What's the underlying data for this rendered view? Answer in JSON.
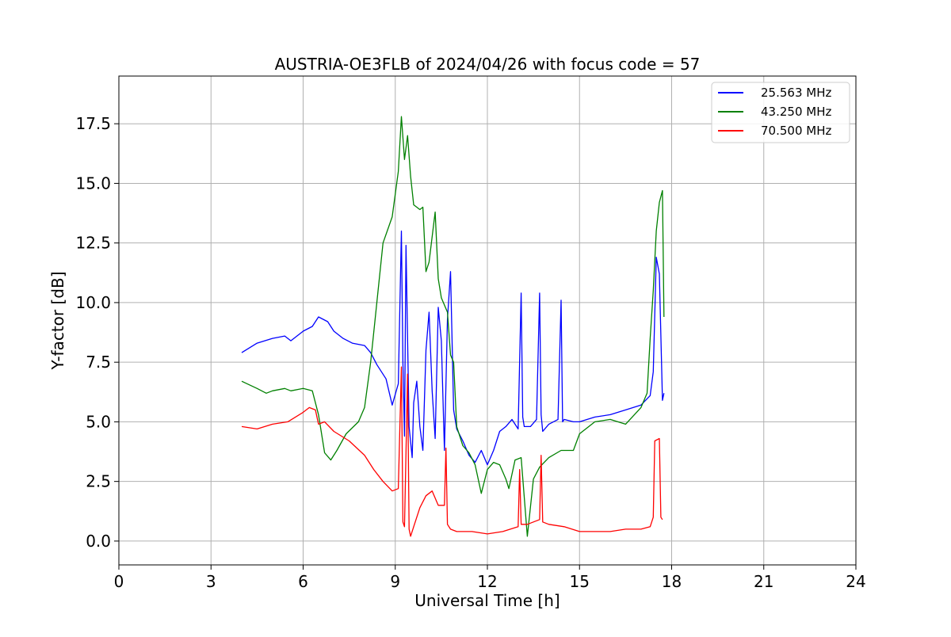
{
  "chart_data": {
    "type": "line",
    "title": "AUSTRIA-OE3FLB of 2024/04/26 with focus code = 57",
    "xlabel": "Universal Time [h]",
    "ylabel": "Y-factor [dB]",
    "xlim": [
      0,
      24
    ],
    "ylim": [
      -1.0,
      19.5
    ],
    "xticks": [
      0,
      3,
      6,
      9,
      12,
      15,
      18,
      21,
      24
    ],
    "xtick_labels": [
      "0",
      "3",
      "6",
      "9",
      "12",
      "15",
      "18",
      "21",
      "24"
    ],
    "yticks": [
      0.0,
      2.5,
      5.0,
      7.5,
      10.0,
      12.5,
      15.0,
      17.5
    ],
    "ytick_labels": [
      "0.0",
      "2.5",
      "5.0",
      "7.5",
      "10.0",
      "12.5",
      "15.0",
      "17.5"
    ],
    "grid": true,
    "legend_position": "top-right",
    "series": [
      {
        "name": "25.563 MHz",
        "color": "#0000ff",
        "x": [
          4.0,
          4.5,
          5.0,
          5.4,
          5.6,
          6.0,
          6.3,
          6.5,
          6.8,
          7.0,
          7.3,
          7.6,
          8.0,
          8.2,
          8.4,
          8.7,
          8.9,
          9.1,
          9.2,
          9.25,
          9.3,
          9.35,
          9.45,
          9.55,
          9.6,
          9.7,
          9.8,
          9.9,
          10.0,
          10.1,
          10.2,
          10.3,
          10.4,
          10.5,
          10.6,
          10.7,
          10.8,
          10.9,
          11.0,
          11.2,
          11.4,
          11.6,
          11.8,
          12.0,
          12.2,
          12.4,
          12.6,
          12.8,
          13.0,
          13.1,
          13.15,
          13.2,
          13.4,
          13.6,
          13.7,
          13.75,
          13.8,
          14.0,
          14.3,
          14.4,
          14.45,
          14.5,
          14.8,
          15.0,
          15.5,
          16.0,
          16.5,
          17.0,
          17.3,
          17.4,
          17.5,
          17.6,
          17.7,
          17.75
        ],
        "values": [
          7.9,
          8.3,
          8.5,
          8.6,
          8.4,
          8.8,
          9.0,
          9.4,
          9.2,
          8.8,
          8.5,
          8.3,
          8.2,
          7.9,
          7.4,
          6.8,
          5.7,
          6.6,
          13.0,
          7.5,
          4.4,
          12.4,
          4.8,
          3.5,
          5.8,
          6.7,
          4.8,
          3.8,
          8.0,
          9.6,
          6.3,
          4.3,
          9.8,
          8.4,
          3.8,
          9.3,
          11.3,
          5.5,
          4.7,
          4.2,
          3.6,
          3.3,
          3.8,
          3.2,
          3.8,
          4.6,
          4.8,
          5.1,
          4.7,
          10.4,
          5.2,
          4.8,
          4.8,
          5.1,
          10.4,
          5.3,
          4.6,
          4.9,
          5.1,
          10.1,
          5.0,
          5.1,
          5.0,
          5.0,
          5.2,
          5.3,
          5.5,
          5.7,
          6.1,
          7.1,
          11.9,
          11.2,
          5.9,
          6.2
        ]
      },
      {
        "name": "43.250 MHz",
        "color": "#008000",
        "x": [
          4.0,
          4.5,
          4.8,
          5.0,
          5.4,
          5.6,
          6.0,
          6.3,
          6.5,
          6.7,
          6.9,
          7.1,
          7.4,
          7.8,
          8.0,
          8.2,
          8.4,
          8.6,
          8.9,
          9.1,
          9.2,
          9.3,
          9.4,
          9.5,
          9.6,
          9.8,
          9.9,
          10.0,
          10.1,
          10.3,
          10.4,
          10.5,
          10.7,
          10.8,
          10.9,
          11.0,
          11.2,
          11.4,
          11.6,
          11.8,
          12.0,
          12.2,
          12.4,
          12.6,
          12.7,
          12.9,
          13.1,
          13.3,
          13.5,
          13.7,
          14.0,
          14.4,
          14.8,
          15.0,
          15.5,
          16.0,
          16.5,
          17.0,
          17.2,
          17.3,
          17.4,
          17.5,
          17.6,
          17.7,
          17.75
        ],
        "values": [
          6.7,
          6.4,
          6.2,
          6.3,
          6.4,
          6.3,
          6.4,
          6.3,
          5.3,
          3.7,
          3.4,
          3.8,
          4.5,
          5.0,
          5.6,
          7.5,
          10.0,
          12.5,
          13.6,
          15.5,
          17.8,
          16.0,
          17.0,
          15.3,
          14.1,
          13.9,
          14.0,
          11.3,
          11.7,
          13.8,
          11.0,
          10.2,
          9.6,
          7.8,
          7.5,
          4.8,
          4.0,
          3.7,
          3.2,
          2.0,
          3.0,
          3.3,
          3.2,
          2.6,
          2.2,
          3.4,
          3.5,
          0.2,
          2.6,
          3.1,
          3.5,
          3.8,
          3.8,
          4.5,
          5.0,
          5.1,
          4.9,
          5.6,
          6.2,
          8.5,
          10.5,
          13.0,
          14.2,
          14.7,
          9.4
        ]
      },
      {
        "name": "70.500 MHz",
        "color": "#ff0000",
        "x": [
          4.0,
          4.5,
          5.0,
          5.5,
          6.0,
          6.2,
          6.4,
          6.5,
          6.7,
          7.0,
          7.5,
          8.0,
          8.3,
          8.6,
          8.9,
          9.1,
          9.2,
          9.25,
          9.3,
          9.4,
          9.45,
          9.5,
          9.6,
          9.8,
          10.0,
          10.2,
          10.4,
          10.6,
          10.65,
          10.7,
          10.8,
          11.0,
          11.5,
          12.0,
          12.5,
          13.0,
          13.05,
          13.1,
          13.3,
          13.5,
          13.7,
          13.75,
          13.8,
          14.0,
          14.5,
          15.0,
          15.5,
          16.0,
          16.5,
          17.0,
          17.3,
          17.4,
          17.45,
          17.6,
          17.65,
          17.7
        ],
        "values": [
          4.8,
          4.7,
          4.9,
          5.0,
          5.4,
          5.6,
          5.5,
          4.9,
          5.0,
          4.6,
          4.2,
          3.6,
          3.0,
          2.5,
          2.1,
          2.2,
          7.3,
          0.8,
          0.6,
          7.0,
          0.5,
          0.2,
          0.6,
          1.4,
          1.9,
          2.1,
          1.5,
          1.5,
          3.9,
          0.7,
          0.5,
          0.4,
          0.4,
          0.3,
          0.4,
          0.6,
          3.0,
          0.7,
          0.7,
          0.8,
          0.9,
          3.6,
          0.8,
          0.7,
          0.6,
          0.4,
          0.4,
          0.4,
          0.5,
          0.5,
          0.6,
          1.0,
          4.2,
          4.3,
          1.0,
          0.9
        ]
      }
    ]
  }
}
